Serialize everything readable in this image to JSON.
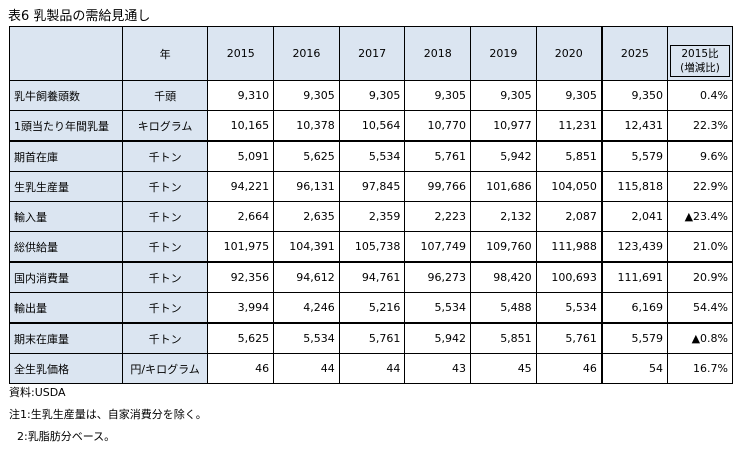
{
  "title": "表6 乳製品の需給見通し",
  "header": {
    "unit_col": "年",
    "years": [
      "2015",
      "2016",
      "2017",
      "2018",
      "2019",
      "2020",
      "2025"
    ],
    "pct_line1": "2015比",
    "pct_line2": "(増減比)"
  },
  "rows": [
    {
      "label": "乳牛飼養頭数",
      "unit": "千頭",
      "values": [
        "9,310",
        "9,305",
        "9,305",
        "9,305",
        "9,305",
        "9,305",
        "9,350"
      ],
      "pct": "0.4%"
    },
    {
      "label": "1頭当たり年間乳量",
      "unit": "キログラム",
      "values": [
        "10,165",
        "10,378",
        "10,564",
        "10,770",
        "10,977",
        "11,231",
        "12,431"
      ],
      "pct": "22.3%"
    },
    {
      "label": "期首在庫",
      "unit": "千トン",
      "values": [
        "5,091",
        "5,625",
        "5,534",
        "5,761",
        "5,942",
        "5,851",
        "5,579"
      ],
      "pct": "9.6%"
    },
    {
      "label": "生乳生産量",
      "unit": "千トン",
      "values": [
        "94,221",
        "96,131",
        "97,845",
        "99,766",
        "101,686",
        "104,050",
        "115,818"
      ],
      "pct": "22.9%"
    },
    {
      "label": "輸入量",
      "unit": "千トン",
      "values": [
        "2,664",
        "2,635",
        "2,359",
        "2,223",
        "2,132",
        "2,087",
        "2,041"
      ],
      "pct": "▲23.4%"
    },
    {
      "label": "総供給量",
      "unit": "千トン",
      "values": [
        "101,975",
        "104,391",
        "105,738",
        "107,749",
        "109,760",
        "111,988",
        "123,439"
      ],
      "pct": "21.0%"
    },
    {
      "label": "国内消費量",
      "unit": "千トン",
      "values": [
        "92,356",
        "94,612",
        "94,761",
        "96,273",
        "98,420",
        "100,693",
        "111,691"
      ],
      "pct": "20.9%"
    },
    {
      "label": "輸出量",
      "unit": "千トン",
      "values": [
        "3,994",
        "4,246",
        "5,216",
        "5,534",
        "5,488",
        "5,534",
        "6,169"
      ],
      "pct": "54.4%"
    },
    {
      "label": "期末在庫量",
      "unit": "千トン",
      "values": [
        "5,625",
        "5,534",
        "5,761",
        "5,942",
        "5,851",
        "5,761",
        "5,579"
      ],
      "pct": "▲0.8%"
    },
    {
      "label": "全生乳価格",
      "unit": "円/キログラム",
      "values": [
        "46",
        "44",
        "44",
        "43",
        "45",
        "46",
        "54"
      ],
      "pct": "16.7%"
    }
  ],
  "notes": {
    "source": "資料:USDA",
    "note1": "注1:生乳生産量は、自家消費分を除く。",
    "note2": "2:乳脂肪分ベース。"
  }
}
